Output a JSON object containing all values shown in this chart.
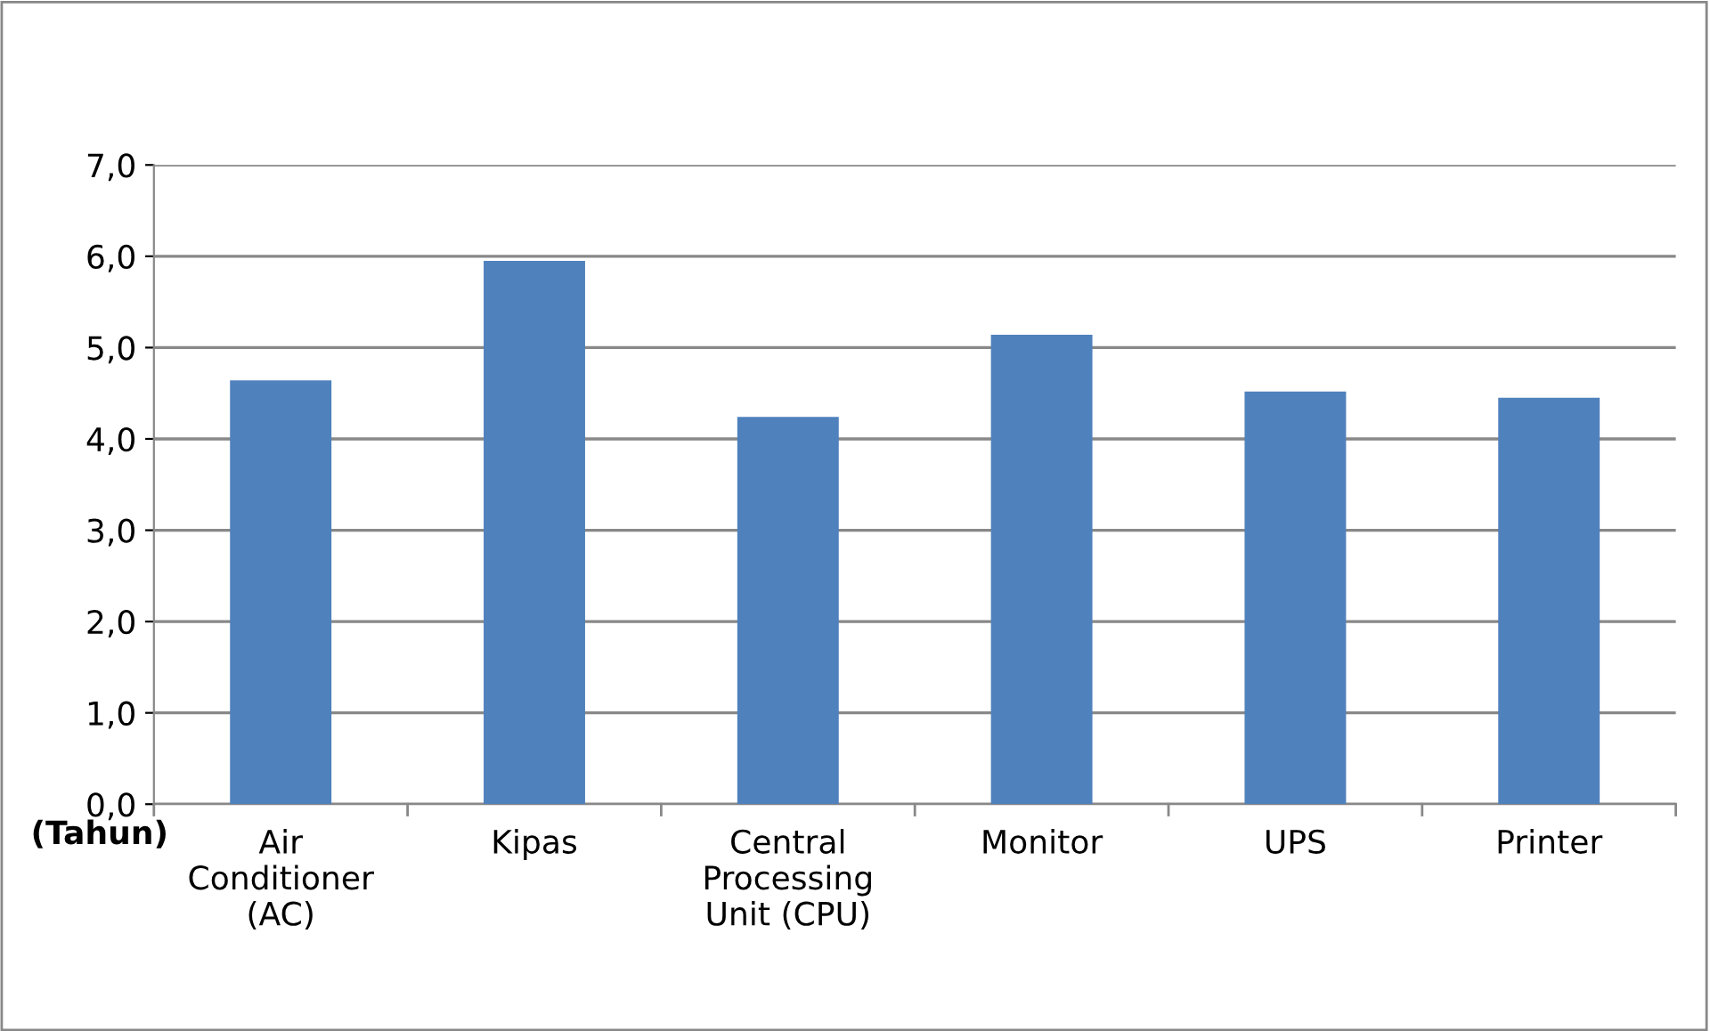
{
  "chart_data": {
    "type": "bar",
    "ylabel": "(Tahun)",
    "categories": [
      "Air\nConditioner\n(AC)",
      "Kipas",
      "Central\nProcessing\nUnit (CPU)",
      "Monitor",
      "UPS",
      "Printer"
    ],
    "values": [
      4.64,
      5.95,
      4.24,
      5.14,
      4.52,
      4.45
    ],
    "color": "#4f81bd",
    "ylim": [
      0,
      7
    ],
    "yticks": [
      {
        "value": 0,
        "label": "0,0"
      },
      {
        "value": 1,
        "label": "1,0"
      },
      {
        "value": 2,
        "label": "2,0"
      },
      {
        "value": 3,
        "label": "3,0"
      },
      {
        "value": 4,
        "label": "4,0"
      },
      {
        "value": 5,
        "label": "5,0"
      },
      {
        "value": 6,
        "label": "6,0"
      },
      {
        "value": 7,
        "label": "7,0"
      }
    ],
    "grid": "y",
    "legend": false
  }
}
